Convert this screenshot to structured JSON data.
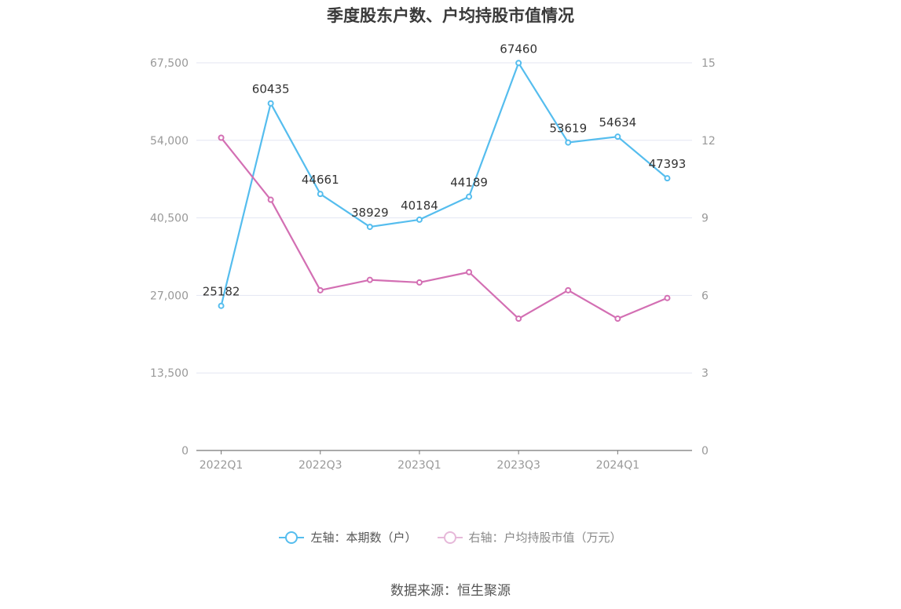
{
  "title": "季度股东户数、户均持股市值情况",
  "source": "数据来源：恒生聚源",
  "colors": {
    "left": "#55bdee",
    "right": "#d36fb3",
    "grid": "#e3e6f2",
    "axis": "#777777",
    "tick": "#999999"
  },
  "legend": [
    {
      "label": "左轴：本期数（户）",
      "color": "#55bdee"
    },
    {
      "label": "右轴：户均持股市值（万元）",
      "color": "#e6b8d9"
    }
  ],
  "chart_data": {
    "type": "line",
    "categories": [
      "2022Q1",
      "2022Q2",
      "2022Q3",
      "2022Q4",
      "2023Q1",
      "2023Q2",
      "2023Q3",
      "2023Q4",
      "2024Q1",
      "2024Q2"
    ],
    "x_tick_labels": [
      "2022Q1",
      "2022Q3",
      "2023Q1",
      "2023Q3",
      "2024Q1"
    ],
    "y_left": {
      "min": 0,
      "max": 67500,
      "ticks": [
        "0",
        "13,500",
        "27,000",
        "40,500",
        "54,000",
        "67,500"
      ]
    },
    "y_right": {
      "min": 0,
      "max": 15,
      "ticks": [
        "0",
        "3",
        "6",
        "9",
        "12",
        "15"
      ]
    },
    "grid": true,
    "legend_position": "bottom",
    "series": [
      {
        "name": "左轴：本期数（户）",
        "axis": "left",
        "values": [
          25182,
          60435,
          44661,
          38929,
          40184,
          44189,
          67460,
          53619,
          54634,
          47393
        ],
        "labels": [
          "25182",
          "60435",
          "44661",
          "38929",
          "40184",
          "44189",
          "67460",
          "53619",
          "54634",
          "47393"
        ]
      },
      {
        "name": "右轴：户均持股市值（万元）",
        "axis": "right",
        "values": [
          12.1,
          9.7,
          6.2,
          6.6,
          6.5,
          6.9,
          5.1,
          6.2,
          5.1,
          5.9
        ]
      }
    ]
  }
}
